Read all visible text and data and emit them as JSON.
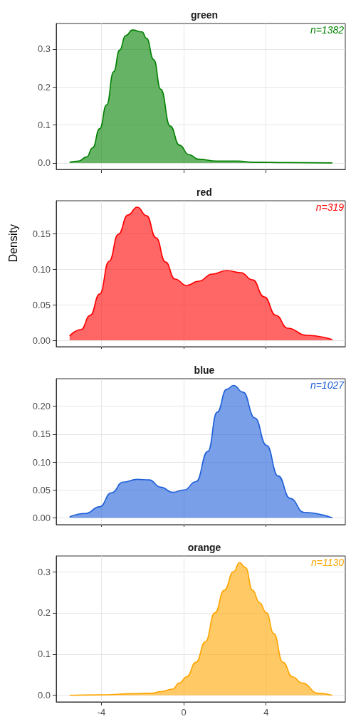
{
  "chart_data": [
    {
      "type": "area",
      "title": "green",
      "annotations": [
        "n=1382"
      ],
      "tick_labels": "y",
      "grid": true,
      "marker": "none",
      "line_style": "solid",
      "xlim": [
        -6.2,
        7.85
      ],
      "xticks": [
        -4,
        0,
        4
      ],
      "ylim": [
        -0.017,
        0.367
      ],
      "yticks": [
        {
          "value": 0,
          "label": "0.0"
        },
        {
          "value": 0.1,
          "label": "0.1"
        },
        {
          "value": 0.2,
          "label": "0.2"
        },
        {
          "value": 0.3,
          "label": "0.3"
        }
      ],
      "x": [
        -5.55,
        -5.12,
        -4.72,
        -4.43,
        -4.09,
        -3.75,
        -3.41,
        -3.12,
        -2.83,
        -2.49,
        -2.03,
        -1.81,
        -1.46,
        -1.12,
        -0.66,
        -0.21,
        0.25,
        0.71,
        1.62,
        2.65,
        3.34,
        5.05,
        7.22
      ],
      "series": [
        {
          "color": "#008000",
          "values": [
            0.002,
            0.005,
            0.016,
            0.04,
            0.09,
            0.153,
            0.24,
            0.297,
            0.335,
            0.35,
            0.345,
            0.328,
            0.272,
            0.194,
            0.097,
            0.047,
            0.022,
            0.01,
            0.005,
            0.005,
            0.002,
            0.001,
            0.0
          ]
        }
      ]
    },
    {
      "type": "area",
      "title": "red",
      "annotations": [
        "n=319"
      ],
      "tick_labels": "y",
      "grid": true,
      "marker": "none",
      "line_style": "solid",
      "ylabel": "Density",
      "xlim": [
        -6.2,
        7.85
      ],
      "xticks": [
        -4,
        0,
        4
      ],
      "ylim": [
        -0.009,
        0.196
      ],
      "yticks": [
        {
          "value": 0,
          "label": "0.00"
        },
        {
          "value": 0.05,
          "label": "0.05"
        },
        {
          "value": 0.1,
          "label": "0.10"
        },
        {
          "value": 0.15,
          "label": "0.15"
        }
      ],
      "x": [
        -5.55,
        -5.0,
        -4.55,
        -4.09,
        -3.63,
        -3.18,
        -2.72,
        -2.26,
        -1.81,
        -1.35,
        -0.89,
        -0.43,
        0.14,
        0.71,
        1.39,
        2.08,
        2.77,
        3.34,
        3.91,
        4.48,
        5.05,
        5.97,
        7.22
      ],
      "series": [
        {
          "color": "#ff0000",
          "values": [
            0.006,
            0.015,
            0.035,
            0.065,
            0.111,
            0.149,
            0.176,
            0.187,
            0.175,
            0.144,
            0.11,
            0.086,
            0.077,
            0.083,
            0.093,
            0.098,
            0.095,
            0.085,
            0.061,
            0.035,
            0.017,
            0.007,
            0.001
          ]
        }
      ]
    },
    {
      "type": "area",
      "title": "blue",
      "annotations": [
        "n=1027"
      ],
      "tick_labels": "y",
      "grid": true,
      "marker": "none",
      "line_style": "solid",
      "xlim": [
        -6.2,
        7.85
      ],
      "xticks": [
        -4,
        0,
        4
      ],
      "ylim": [
        -0.012,
        0.249
      ],
      "yticks": [
        {
          "value": 0,
          "label": "0.00"
        },
        {
          "value": 0.05,
          "label": "0.05"
        },
        {
          "value": 0.1,
          "label": "0.10"
        },
        {
          "value": 0.15,
          "label": "0.15"
        },
        {
          "value": 0.2,
          "label": "0.20"
        }
      ],
      "x": [
        -5.55,
        -4.78,
        -4.09,
        -3.52,
        -2.95,
        -2.26,
        -1.69,
        -1.12,
        -0.55,
        0.02,
        0.59,
        1.17,
        1.62,
        2.08,
        2.42,
        2.88,
        3.45,
        4.02,
        4.59,
        5.17,
        5.85,
        7.22
      ],
      "series": [
        {
          "color": "#1f5fd9",
          "values": [
            0.002,
            0.008,
            0.02,
            0.045,
            0.064,
            0.069,
            0.068,
            0.055,
            0.046,
            0.05,
            0.065,
            0.119,
            0.189,
            0.23,
            0.237,
            0.225,
            0.179,
            0.13,
            0.075,
            0.035,
            0.01,
            0.0
          ]
        }
      ]
    },
    {
      "type": "area",
      "title": "orange",
      "annotations": [
        "n=1130"
      ],
      "grid": true,
      "marker": "none",
      "line_style": "solid",
      "xlim": [
        -6.2,
        7.85
      ],
      "xticks": [
        -4,
        0,
        4
      ],
      "ylim": [
        -0.016,
        0.338
      ],
      "yticks": [
        {
          "value": 0,
          "label": "0.0"
        },
        {
          "value": 0.1,
          "label": "0.1"
        },
        {
          "value": 0.2,
          "label": "0.2"
        },
        {
          "value": 0.3,
          "label": "0.3"
        }
      ],
      "x": [
        -5.55,
        -4.09,
        -2.38,
        -1.58,
        -1.12,
        -0.55,
        -0.21,
        0.14,
        0.59,
        1.05,
        1.51,
        1.97,
        2.42,
        2.71,
        3.0,
        3.34,
        3.68,
        4.02,
        4.37,
        4.82,
        5.28,
        5.74,
        6.54,
        7.22
      ],
      "series": [
        {
          "color": "#ffa500",
          "values": [
            0.0,
            0.001,
            0.004,
            0.005,
            0.009,
            0.015,
            0.03,
            0.045,
            0.08,
            0.13,
            0.2,
            0.255,
            0.3,
            0.322,
            0.31,
            0.255,
            0.225,
            0.2,
            0.15,
            0.08,
            0.045,
            0.03,
            0.005,
            0.0
          ]
        }
      ]
    }
  ]
}
